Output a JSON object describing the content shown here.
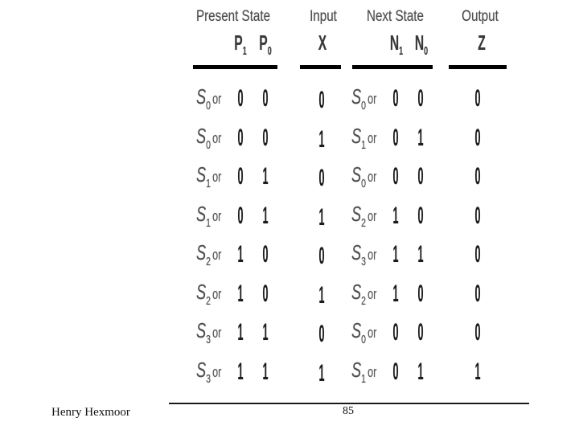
{
  "slide": {
    "footer": {
      "author": "Henry Hexmoor",
      "page_number": "85"
    }
  },
  "table": {
    "column_groups": [
      {
        "title": "Present State"
      },
      {
        "title": "Input"
      },
      {
        "title": "Next State"
      },
      {
        "title": "Output"
      }
    ],
    "subheaders": {
      "p1": {
        "base": "P",
        "sub": "1"
      },
      "p0": {
        "base": "P",
        "sub": "0"
      },
      "x": "X",
      "n1": {
        "base": "N",
        "sub": "1"
      },
      "n0": {
        "base": "N",
        "sub": "0"
      },
      "z": "Z"
    },
    "rows": [
      {
        "present": {
          "base": "S",
          "sub": "0",
          "suffix": "or"
        },
        "p1": "0",
        "p0": "0",
        "x": "0",
        "next": {
          "base": "S",
          "sub": "0",
          "suffix": "or"
        },
        "n1": "0",
        "n0": "0",
        "z": "0"
      },
      {
        "present": {
          "base": "S",
          "sub": "0",
          "suffix": "or"
        },
        "p1": "0",
        "p0": "0",
        "x": "1",
        "next": {
          "base": "S",
          "sub": "1",
          "suffix": "or"
        },
        "n1": "0",
        "n0": "1",
        "z": "0"
      },
      {
        "present": {
          "base": "S",
          "sub": "1",
          "suffix": "or"
        },
        "p1": "0",
        "p0": "1",
        "x": "0",
        "next": {
          "base": "S",
          "sub": "0",
          "suffix": "or"
        },
        "n1": "0",
        "n0": "0",
        "z": "0"
      },
      {
        "present": {
          "base": "S",
          "sub": "1",
          "suffix": "or"
        },
        "p1": "0",
        "p0": "1",
        "x": "1",
        "next": {
          "base": "S",
          "sub": "2",
          "suffix": "or"
        },
        "n1": "1",
        "n0": "0",
        "z": "0"
      },
      {
        "present": {
          "base": "S",
          "sub": "2",
          "suffix": "or"
        },
        "p1": "1",
        "p0": "0",
        "x": "0",
        "next": {
          "base": "S",
          "sub": "3",
          "suffix": "or"
        },
        "n1": "1",
        "n0": "1",
        "z": "0"
      },
      {
        "present": {
          "base": "S",
          "sub": "2",
          "suffix": "or"
        },
        "p1": "1",
        "p0": "0",
        "x": "1",
        "next": {
          "base": "S",
          "sub": "2",
          "suffix": "or"
        },
        "n1": "1",
        "n0": "0",
        "z": "0"
      },
      {
        "present": {
          "base": "S",
          "sub": "3",
          "suffix": "or"
        },
        "p1": "1",
        "p0": "1",
        "x": "0",
        "next": {
          "base": "S",
          "sub": "0",
          "suffix": "or"
        },
        "n1": "0",
        "n0": "0",
        "z": "0"
      },
      {
        "present": {
          "base": "S",
          "sub": "3",
          "suffix": "or"
        },
        "p1": "1",
        "p0": "1",
        "x": "1",
        "next": {
          "base": "S",
          "sub": "1",
          "suffix": "or"
        },
        "n1": "0",
        "n0": "1",
        "z": "1"
      }
    ]
  },
  "colors": {
    "ink": "#1c1c1c",
    "scan_gray": "#4d4d4d",
    "rule_black": "#000000"
  }
}
